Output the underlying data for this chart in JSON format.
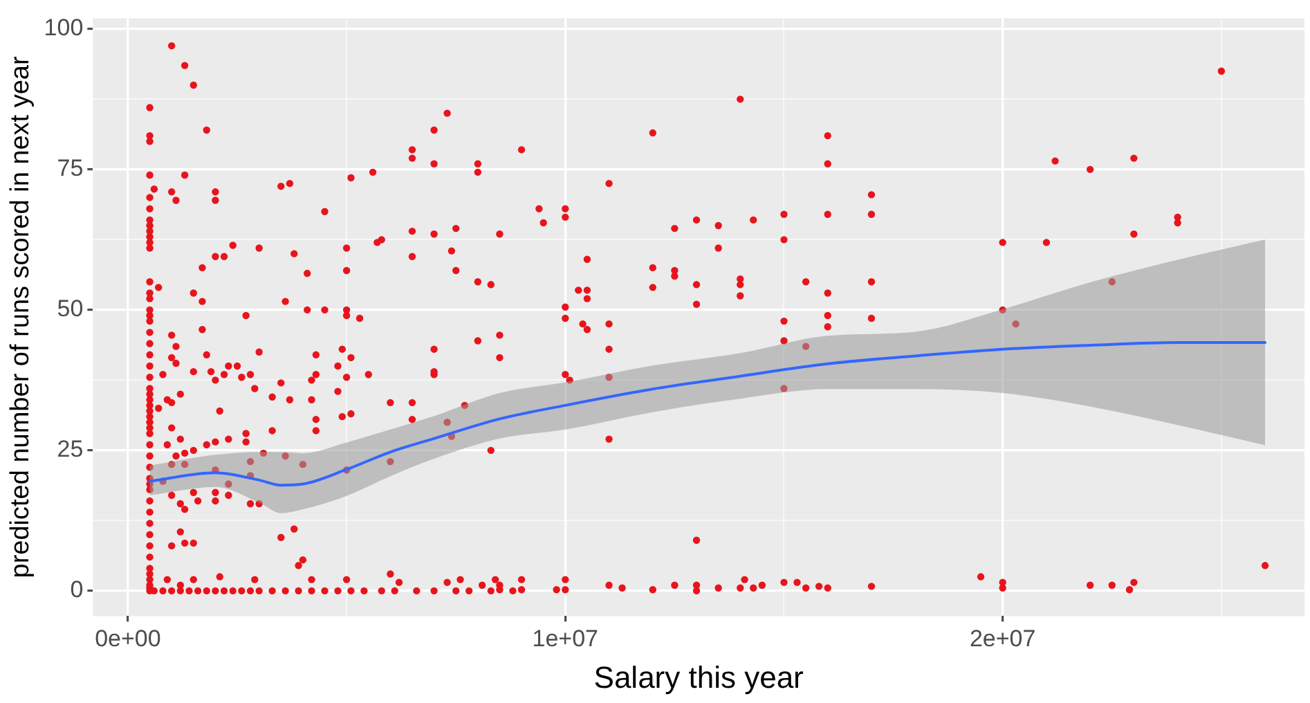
{
  "chart_data": {
    "type": "scatter",
    "xlabel": "Salary this year",
    "ylabel": "predicted number of runs scored in next year",
    "xlim": [
      -800000,
      26900000
    ],
    "ylim": [
      -4.5,
      101.9
    ],
    "xticks": [
      {
        "value": 0,
        "label": "0e+00"
      },
      {
        "value": 5000000,
        "label": null
      },
      {
        "value": 10000000,
        "label": "1e+07"
      },
      {
        "value": 15000000,
        "label": null
      },
      {
        "value": 20000000,
        "label": "2e+07"
      },
      {
        "value": 25000000,
        "label": null
      }
    ],
    "yticks": [
      0,
      {
        "value": 12.5,
        "label": null
      },
      25,
      {
        "value": 37.5,
        "label": null
      },
      50,
      {
        "value": 62.5,
        "label": null
      },
      75,
      {
        "value": 87.5,
        "label": null
      },
      100
    ],
    "grid": true,
    "series": [
      {
        "marker": "circle",
        "color": "#e8141c",
        "x": [
          500000.0,
          500000.0,
          500000.0,
          500000.0,
          500000.0,
          500000.0,
          500000.0,
          500000.0,
          500000.0,
          500000.0,
          500000.0,
          500000.0,
          500000.0,
          500000.0,
          500000.0,
          500000.0,
          500000.0,
          500000.0,
          500000.0,
          500000.0,
          500000.0,
          500000.0,
          500000.0,
          500000.0,
          500000.0,
          500000.0,
          500000.0,
          500000.0,
          500000.0,
          500000.0,
          500000.0,
          500000.0,
          500000.0,
          500000.0,
          500000.0,
          500000.0,
          500000.0,
          500000.0,
          500000.0,
          500000.0,
          500000.0,
          500000.0,
          500000.0,
          500000.0,
          500000.0,
          500000.0,
          500000.0,
          500000.0,
          500000.0,
          500000.0,
          1000000.0,
          1300000.0,
          1500000.0,
          1800000.0,
          1300000.0,
          600000.0,
          1000000.0,
          1100000.0,
          2000000.0,
          2000000.0,
          3500000.0,
          3700000.0,
          4500000.0,
          5100000.0,
          5600000.0,
          6500000.0,
          6500000.0,
          7000000.0,
          7300000.0,
          7000000.0,
          8000000.0,
          8000000.0,
          2400000.0,
          2000000.0,
          2200000.0,
          3000000.0,
          3800000.0,
          1700000.0,
          5000000.0,
          5000000.0,
          4100000.0,
          5700000.0,
          5800000.0,
          6500000.0,
          7000000.0,
          7500000.0,
          8500000.0,
          6500000.0,
          7400000.0,
          7500000.0,
          8000000.0,
          8300000.0,
          1500000.0,
          1700000.0,
          3600000.0,
          2700000.0,
          4100000.0,
          4500000.0,
          5000000.0,
          5000000.0,
          5300000.0,
          1000000.0,
          1700000.0,
          700000.0,
          8000000.0,
          8500000.0,
          1100000.0,
          1800000.0,
          1000000.0,
          1100000.0,
          1500000.0,
          1900000.0,
          2000000.0,
          2200000.0,
          2300000.0,
          2500000.0,
          2600000.0,
          2800000.0,
          3000000.0,
          2900000.0,
          3300000.0,
          3500000.0,
          3700000.0,
          4200000.0,
          4300000.0,
          4300000.0,
          4200000.0,
          4900000.0,
          5100000.0,
          4800000.0,
          5000000.0,
          4800000.0,
          5500000.0,
          4900000.0,
          5100000.0,
          4300000.0,
          4300000.0,
          3300000.0,
          2100000.0,
          900000.0,
          800000.0,
          1000000.0,
          1200000.0,
          700000.0,
          1000000.0,
          2700000.0,
          2700000.0,
          2300000.0,
          2000000.0,
          1800000.0,
          1500000.0,
          1200000.0,
          1100000.0,
          1300000.0,
          900000.0,
          1300000.0,
          1000000.0,
          3100000.0,
          3600000.0,
          2800000.0,
          4000000.0,
          2800000.0,
          2000000.0,
          800000.0,
          1000000.0,
          1200000.0,
          1300000.0,
          1500000.0,
          1600000.0,
          2000000.0,
          2000000.0,
          2300000.0,
          2300000.0,
          2800000.0,
          3000000.0,
          1200000.0,
          1000000.0,
          1300000.0,
          1500000.0,
          3800000.0,
          3500000.0,
          4000000.0,
          3900000.0,
          6000000.0,
          6500000.0,
          6500000.0,
          7000000.0,
          7000000.0,
          7000000.0,
          7300000.0,
          7700000.0,
          7400000.0,
          8300000.0,
          8500000.0,
          6000000.0,
          5000000.0,
          600000.0,
          800000.0,
          1000000.0,
          1200000.0,
          1400000.0,
          1600000.0,
          1800000.0,
          2000000.0,
          2200000.0,
          2400000.0,
          2600000.0,
          2800000.0,
          3000000.0,
          3300000.0,
          3600000.0,
          3900000.0,
          4200000.0,
          4500000.0,
          4800000.0,
          5100000.0,
          5400000.0,
          5800000.0,
          6100000.0,
          6600000.0,
          7000000.0,
          7500000.0,
          7800000.0,
          8300000.0,
          8800000.0,
          900000.0,
          1200000.0,
          1500000.0,
          2100000.0,
          2900000.0,
          4200000.0,
          5000000.0,
          6000000.0,
          6200000.0,
          7300000.0,
          7600000.0,
          8100000.0,
          8400000.0,
          9000000.0,
          12000000.0,
          14000000.0,
          16000000.0,
          16000000.0,
          11000000.0,
          9400000.0,
          9500000.0,
          10000000.0,
          10000000.0,
          10500000.0,
          10300000.0,
          10500000.0,
          10500000.0,
          10000000.0,
          10000000.0,
          10400000.0,
          10500000.0,
          11000000.0,
          11000000.0,
          10000000.0,
          10100000.0,
          11000000.0,
          11000000.0,
          12500000.0,
          13000000.0,
          13500000.0,
          14300000.0,
          15000000.0,
          16000000.0,
          17000000.0,
          17000000.0,
          15000000.0,
          13500000.0,
          12000000.0,
          12500000.0,
          12500000.0,
          12000000.0,
          13000000.0,
          13000000.0,
          14000000.0,
          14000000.0,
          14000000.0,
          15500000.0,
          16000000.0,
          17000000.0,
          15000000.0,
          16000000.0,
          16000000.0,
          17000000.0,
          15000000.0,
          15500000.0,
          15000000.0,
          13000000.0,
          8500000.0,
          8500000.0,
          9000000.0,
          9000000.0,
          9800000.0,
          10000000.0,
          10000000.0,
          11000000.0,
          11300000.0,
          12000000.0,
          12500000.0,
          13000000.0,
          13000000.0,
          13500000.0,
          14000000.0,
          14100000.0,
          14300000.0,
          14500000.0,
          15000000.0,
          15300000.0,
          15500000.0,
          15800000.0,
          16000000.0,
          17000000.0,
          25000000.0,
          21200000.0,
          22000000.0,
          23000000.0,
          24000000.0,
          24000000.0,
          23000000.0,
          20000000.0,
          21000000.0,
          22500000.0,
          20000000.0,
          20300000.0,
          19500000.0,
          20000000.0,
          20000000.0,
          22000000.0,
          22500000.0,
          22900000.0,
          23000000.0,
          26000000.0
        ],
        "values": [
          86,
          81,
          80,
          74,
          70,
          68,
          66,
          65,
          64,
          63,
          62,
          61,
          55,
          53,
          52,
          50,
          49,
          48,
          46,
          44,
          42,
          40,
          38,
          36,
          35,
          34,
          33,
          32,
          31,
          30,
          29,
          28,
          26,
          24,
          22,
          20,
          19,
          18,
          16,
          14,
          12,
          10,
          8,
          6,
          4,
          3,
          2,
          1,
          0.5,
          0,
          97,
          93.5,
          90,
          82,
          74,
          71.5,
          71,
          69.5,
          71,
          69.5,
          72,
          72.5,
          67.5,
          73.5,
          74.5,
          78.5,
          77,
          82,
          85,
          76,
          76,
          74.5,
          61.5,
          59.5,
          59.5,
          61,
          60,
          57.5,
          61,
          57,
          56.5,
          62,
          62.5,
          64,
          63.5,
          64.5,
          63.5,
          59.5,
          60.5,
          57,
          55,
          54.5,
          53,
          51.5,
          51.5,
          49,
          50,
          50,
          50,
          49,
          48.5,
          45.5,
          46.5,
          54,
          44.5,
          45.5,
          43.5,
          42,
          41.5,
          40.5,
          39,
          39,
          37.5,
          38.5,
          40,
          40,
          38,
          38.5,
          42.5,
          36,
          34.5,
          37,
          34,
          37.5,
          42,
          38.5,
          34,
          43,
          41.5,
          40,
          38,
          35.5,
          38.5,
          31,
          31.5,
          30.5,
          28.5,
          28.5,
          32,
          34,
          38.5,
          33.5,
          35,
          32.5,
          29,
          28,
          26.5,
          27,
          26.5,
          26,
          25,
          27,
          24,
          24.5,
          26,
          22.5,
          22.5,
          24.5,
          24,
          23,
          22.5,
          20.5,
          21.5,
          19.5,
          17,
          15.5,
          14.5,
          17.5,
          16,
          17.5,
          16,
          17,
          19,
          15.5,
          15.5,
          10.5,
          8,
          8.5,
          8.5,
          11,
          9.5,
          5.5,
          4.5,
          33.5,
          33.5,
          30.5,
          43,
          39,
          38.5,
          30,
          33,
          27.5,
          25,
          41.5,
          23,
          21.5,
          0,
          0,
          0,
          0,
          0,
          0,
          0,
          0,
          0,
          0,
          0,
          0,
          0,
          0,
          0,
          0,
          0,
          0,
          0,
          0,
          0,
          0,
          0,
          0,
          0,
          0,
          0,
          0,
          0,
          2,
          1,
          2,
          2.5,
          2,
          2,
          2,
          3,
          1.5,
          1.5,
          2,
          1,
          2,
          78.5,
          81.5,
          87.5,
          81,
          76,
          72.5,
          68,
          65.5,
          68,
          66.5,
          59,
          53.5,
          53.5,
          52,
          50.5,
          48.5,
          47.5,
          46.5,
          47.5,
          43,
          38.5,
          37.5,
          38,
          27,
          64.5,
          66,
          65,
          66,
          67,
          67,
          70.5,
          67,
          62.5,
          61,
          57.5,
          57,
          56,
          54,
          54.5,
          51,
          55.5,
          54.5,
          52.5,
          55,
          53,
          55,
          48,
          49,
          47,
          48.5,
          44.5,
          43.5,
          36,
          9,
          1,
          0.2,
          2,
          0.2,
          0.2,
          2,
          0.2,
          1,
          0.5,
          0.2,
          1,
          1,
          0,
          0.5,
          0.5,
          2,
          0.5,
          1,
          1.5,
          1.5,
          0.5,
          0.8,
          0.5,
          0.8,
          92.5,
          76.5,
          75,
          77,
          66.5,
          65.5,
          63.5,
          62,
          62,
          55,
          50,
          47.5,
          2.5,
          1.5,
          0.5,
          1,
          1,
          0.2,
          1.5,
          4.5
        ]
      },
      {
        "type": "line",
        "marker": "none",
        "color": "#3366ff",
        "x": [
          500000.0,
          2000000.0,
          3000000.0,
          3500000.0,
          4000000.0,
          5000000.0,
          6000000.0,
          7000000.0,
          8500000.0,
          10000000.0,
          12000000.0,
          14000000.0,
          16000000.0,
          18000000.0,
          20000000.0,
          22000000.0,
          24000000.0,
          26000000.0
        ],
        "values": [
          19.5,
          21,
          19.7,
          18.8,
          19,
          21.6,
          24.7,
          27.1,
          30.6,
          33,
          35.9,
          38.2,
          40.4,
          41.8,
          43,
          43.7,
          44.2,
          44.2
        ],
        "lower": [
          17,
          18.5,
          15.7,
          13.8,
          14.5,
          16.9,
          20.4,
          23.5,
          27.1,
          28.7,
          31.8,
          34.2,
          35.9,
          35.9,
          35.2,
          32.8,
          29.5,
          25.9
        ],
        "upper": [
          22.3,
          24.2,
          24.7,
          24.7,
          24.5,
          26.4,
          28.7,
          31.1,
          35.2,
          37.1,
          40.1,
          42.3,
          45.4,
          46.1,
          50.1,
          54.9,
          58.9,
          62.5
        ]
      }
    ]
  }
}
